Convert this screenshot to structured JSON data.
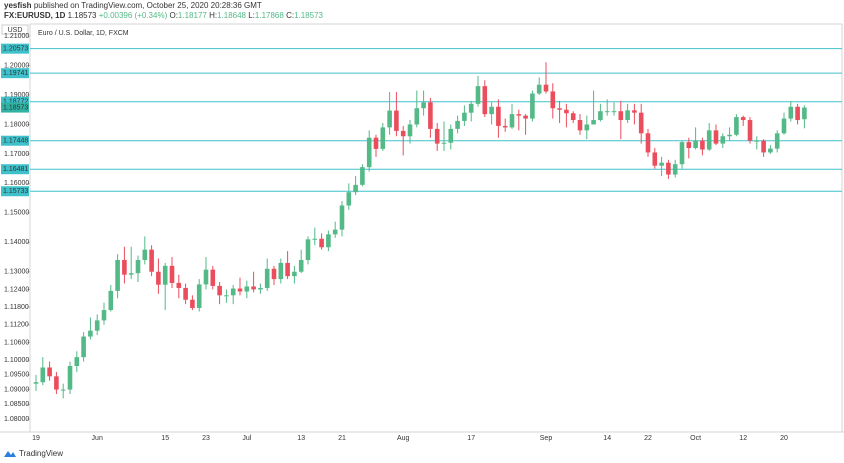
{
  "header": {
    "author": "yesfish",
    "published": "published on TradingView.com, October 25, 2020 20:28:36 GMT",
    "symbol": "FX:EURUSD, 1D",
    "last": "1.18573",
    "change": "+0.00396 (+0.34%)",
    "ohlc": [
      {
        "label": "O:",
        "value": "1.18177"
      },
      {
        "label": "H:",
        "value": "1.18648"
      },
      {
        "label": "L:",
        "value": "1.17868"
      },
      {
        "label": "C:",
        "value": "1.18573"
      }
    ]
  },
  "chart_data": {
    "type": "candlestick",
    "title": "Euro / U.S. Dollar, 1D, FXCM",
    "currency": "USD",
    "up_color": "#53b987",
    "down_color": "#eb4d5c",
    "level_color": "#3fc1cb",
    "ylim": [
      1.0756,
      1.2141
    ],
    "yticks": [
      {
        "value": 1.21,
        "label": "1.21000"
      },
      {
        "value": 1.2,
        "label": "1.20000"
      },
      {
        "value": 1.19,
        "label": "1.19000"
      },
      {
        "value": 1.18,
        "label": "1.18000"
      },
      {
        "value": 1.17,
        "label": "1.17000"
      },
      {
        "value": 1.16,
        "label": "1.16000"
      },
      {
        "value": 1.15,
        "label": "1.15000"
      },
      {
        "value": 1.14,
        "label": "1.14000"
      },
      {
        "value": 1.13,
        "label": "1.13000"
      },
      {
        "value": 1.124,
        "label": "1.12400"
      },
      {
        "value": 1.118,
        "label": "1.11800"
      },
      {
        "value": 1.112,
        "label": "1.11200"
      },
      {
        "value": 1.106,
        "label": "1.10600"
      },
      {
        "value": 1.1,
        "label": "1.10000"
      },
      {
        "value": 1.095,
        "label": "1.09500"
      },
      {
        "value": 1.09,
        "label": "1.09000"
      },
      {
        "value": 1.085,
        "label": "1.08500"
      },
      {
        "value": 1.08,
        "label": "1.08000"
      }
    ],
    "levels": [
      1.20573,
      1.19741,
      1.18772,
      1.17448,
      1.16481,
      1.15733
    ],
    "last_price": 1.18573,
    "categories": [
      "19",
      null,
      null,
      null,
      null,
      null,
      null,
      null,
      null,
      "Jun",
      null,
      null,
      null,
      null,
      null,
      null,
      null,
      null,
      null,
      "15",
      null,
      null,
      null,
      null,
      null,
      "23",
      null,
      null,
      null,
      null,
      null,
      "Jul",
      null,
      null,
      null,
      null,
      null,
      null,
      null,
      "13",
      null,
      null,
      null,
      null,
      null,
      "21",
      null,
      null,
      null,
      null,
      null,
      null,
      null,
      null,
      "Aug",
      null,
      null,
      null,
      null,
      null,
      null,
      null,
      null,
      null,
      "17",
      null,
      null,
      null,
      null,
      null,
      null,
      null,
      null,
      null,
      null,
      "Sep",
      null,
      null,
      null,
      null,
      null,
      null,
      null,
      null,
      "14",
      null,
      null,
      null,
      null,
      null,
      "22",
      null,
      null,
      null,
      null,
      null,
      null,
      "Oct",
      null,
      null,
      null,
      null,
      null,
      null,
      "12",
      null,
      null,
      null,
      null,
      null,
      "20",
      null,
      null,
      null
    ],
    "open": [
      1.092,
      1.0925,
      1.0975,
      1.0945,
      1.09,
      1.09,
      1.098,
      1.101,
      1.108,
      1.11,
      1.1135,
      1.117,
      1.1235,
      1.134,
      1.129,
      1.1295,
      1.134,
      1.1375,
      1.13,
      1.1256,
      1.132,
      1.1262,
      1.1245,
      1.1205,
      1.1177,
      1.1257,
      1.1307,
      1.1252,
      1.122,
      1.122,
      1.1243,
      1.1233,
      1.125,
      1.124,
      1.1245,
      1.131,
      1.1275,
      1.133,
      1.1285,
      1.13,
      1.134,
      1.141,
      1.1412,
      1.1383,
      1.1427,
      1.1443,
      1.1525,
      1.157,
      1.1595,
      1.1655,
      1.1755,
      1.1717,
      1.179,
      1.1847,
      1.1778,
      1.176,
      1.18,
      1.1855,
      1.1875,
      1.1785,
      1.1735,
      1.1738,
      1.1785,
      1.1812,
      1.184,
      1.187,
      1.193,
      1.1835,
      1.186,
      1.1795,
      1.179,
      1.1835,
      1.183,
      1.182,
      1.1905,
      1.1935,
      1.1912,
      1.1855,
      1.185,
      1.1838,
      1.1815,
      1.178,
      1.18,
      1.1815,
      1.1845,
      1.1845,
      1.1845,
      1.1815,
      1.1848,
      1.184,
      1.177,
      1.1705,
      1.166,
      1.167,
      1.163,
      1.1665,
      1.174,
      1.172,
      1.1745,
      1.1715,
      1.178,
      1.1735,
      1.176,
      1.1765,
      1.1825,
      1.1815,
      1.1745,
      1.1745,
      1.1705,
      1.1718,
      1.177,
      1.182,
      1.186,
      1.18177
    ],
    "high": [
      1.095,
      1.101,
      1.0995,
      1.096,
      1.092,
      1.0995,
      1.103,
      1.1095,
      1.1145,
      1.1155,
      1.1195,
      1.1255,
      1.136,
      1.1385,
      1.1385,
      1.1355,
      1.142,
      1.139,
      1.1345,
      1.133,
      1.135,
      1.129,
      1.126,
      1.122,
      1.1275,
      1.135,
      1.132,
      1.1265,
      1.124,
      1.1255,
      1.128,
      1.127,
      1.13,
      1.126,
      1.1345,
      1.132,
      1.1345,
      1.137,
      1.132,
      1.1375,
      1.142,
      1.145,
      1.143,
      1.144,
      1.147,
      1.154,
      1.16,
      1.1625,
      1.1665,
      1.178,
      1.1765,
      1.1805,
      1.191,
      1.191,
      1.1795,
      1.1815,
      1.1915,
      1.1915,
      1.189,
      1.1805,
      1.181,
      1.18,
      1.183,
      1.1865,
      1.188,
      1.1965,
      1.195,
      1.1875,
      1.1885,
      1.182,
      1.187,
      1.185,
      1.1835,
      1.1915,
      1.196,
      1.2011,
      1.194,
      1.188,
      1.187,
      1.1845,
      1.1835,
      1.183,
      1.1915,
      1.187,
      1.1885,
      1.1875,
      1.188,
      1.187,
      1.187,
      1.187,
      1.1785,
      1.172,
      1.169,
      1.168,
      1.168,
      1.1745,
      1.1755,
      1.179,
      1.1755,
      1.1805,
      1.18,
      1.177,
      1.179,
      1.1835,
      1.183,
      1.1825,
      1.176,
      1.175,
      1.173,
      1.178,
      1.184,
      1.188,
      1.187,
      1.18648
    ],
    "low": [
      1.0895,
      1.0915,
      1.093,
      1.0885,
      1.087,
      1.0885,
      1.096,
      1.0995,
      1.107,
      1.1085,
      1.112,
      1.1165,
      1.121,
      1.126,
      1.1275,
      1.1265,
      1.1325,
      1.1285,
      1.1225,
      1.117,
      1.1245,
      1.121,
      1.119,
      1.117,
      1.1165,
      1.124,
      1.124,
      1.119,
      1.1195,
      1.119,
      1.122,
      1.121,
      1.123,
      1.1225,
      1.1235,
      1.1255,
      1.126,
      1.1275,
      1.126,
      1.1295,
      1.1325,
      1.139,
      1.1375,
      1.137,
      1.1415,
      1.142,
      1.151,
      1.156,
      1.159,
      1.164,
      1.169,
      1.171,
      1.1765,
      1.176,
      1.1695,
      1.1735,
      1.179,
      1.183,
      1.1755,
      1.171,
      1.171,
      1.1715,
      1.177,
      1.1795,
      1.181,
      1.186,
      1.1825,
      1.18,
      1.1755,
      1.1775,
      1.1785,
      1.178,
      1.1765,
      1.181,
      1.19,
      1.1905,
      1.182,
      1.1805,
      1.179,
      1.1805,
      1.1765,
      1.175,
      1.18,
      1.181,
      1.183,
      1.183,
      1.175,
      1.1805,
      1.18,
      1.1735,
      1.169,
      1.165,
      1.1625,
      1.1615,
      1.162,
      1.165,
      1.1685,
      1.1715,
      1.1695,
      1.171,
      1.173,
      1.172,
      1.1745,
      1.176,
      1.1795,
      1.1735,
      1.1715,
      1.169,
      1.17,
      1.1705,
      1.1765,
      1.181,
      1.18,
      1.17868
    ],
    "close": [
      1.0925,
      1.0975,
      1.0945,
      1.09,
      1.09,
      1.098,
      1.101,
      1.108,
      1.11,
      1.1135,
      1.117,
      1.1235,
      1.134,
      1.129,
      1.1295,
      1.134,
      1.1375,
      1.13,
      1.1256,
      1.132,
      1.1262,
      1.1245,
      1.1205,
      1.1177,
      1.1257,
      1.1307,
      1.1252,
      1.122,
      1.122,
      1.1243,
      1.1233,
      1.125,
      1.124,
      1.1245,
      1.131,
      1.1275,
      1.133,
      1.1285,
      1.13,
      1.134,
      1.141,
      1.1412,
      1.1383,
      1.1427,
      1.1443,
      1.1525,
      1.157,
      1.1595,
      1.1655,
      1.1755,
      1.1717,
      1.179,
      1.1847,
      1.1778,
      1.176,
      1.18,
      1.1855,
      1.1875,
      1.1785,
      1.1735,
      1.1738,
      1.1785,
      1.1812,
      1.184,
      1.187,
      1.193,
      1.1835,
      1.186,
      1.1795,
      1.179,
      1.1835,
      1.183,
      1.182,
      1.1905,
      1.1935,
      1.1912,
      1.1855,
      1.185,
      1.1838,
      1.1815,
      1.178,
      1.18,
      1.1815,
      1.1845,
      1.1845,
      1.1845,
      1.1815,
      1.1848,
      1.184,
      1.177,
      1.1705,
      1.166,
      1.167,
      1.163,
      1.1665,
      1.174,
      1.172,
      1.1745,
      1.1715,
      1.178,
      1.1735,
      1.176,
      1.1765,
      1.1825,
      1.1815,
      1.1745,
      1.1745,
      1.1705,
      1.1718,
      1.177,
      1.182,
      1.186,
      1.1815,
      1.18573
    ]
  },
  "footer": {
    "brand": "TradingView"
  }
}
